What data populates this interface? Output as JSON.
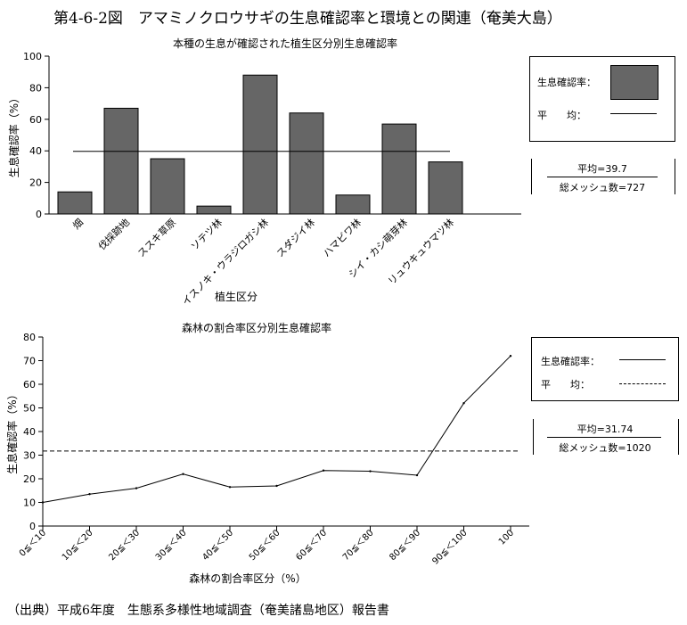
{
  "title": "第4-6-2図　アマミノクロウサギの生息確認率と環境との関連（奄美大島）",
  "source": "（出典）平成6年度　生態系多様性地域調査（奄美諸島地区）報告書",
  "chart_data": [
    {
      "type": "bar",
      "title": "本種の生息が確認された植生区分別生息確認率",
      "xlabel": "植生区分",
      "ylabel": "生息確認率（%）",
      "ylim": [
        0,
        100
      ],
      "yticks": [
        0,
        20,
        40,
        60,
        80,
        100
      ],
      "categories": [
        "畑",
        "伐採跡地",
        "ススキ草原",
        "ソテツ林",
        "イスノキ・ウラジロガシ林",
        "スダジイ林",
        "ハマビワ林",
        "シイ・カシ萌芽林",
        "リュウキュウマツ林"
      ],
      "values": [
        14,
        67,
        35,
        5,
        88,
        64,
        12,
        57,
        33
      ],
      "average": 39.7,
      "bar_color": "#666666",
      "legend": {
        "placement": "right",
        "observed_label": "生息確認率：",
        "average_label": "平　　均："
      },
      "stats": {
        "average_text": "平均=39.7",
        "mesh_text": "総メッシュ数=727"
      }
    },
    {
      "type": "line",
      "title": "森林の割合率区分別生息確認率",
      "xlabel": "森林の割合率区分（%）",
      "ylabel": "生息確認率（%）",
      "ylim": [
        0,
        80
      ],
      "yticks": [
        0,
        10,
        20,
        30,
        40,
        50,
        60,
        70,
        80
      ],
      "categories": [
        "0≦＜10",
        "10≦＜20",
        "20≦＜30",
        "30≦＜40",
        "40≦＜50",
        "50≦＜60",
        "60≦＜70",
        "70≦＜80",
        "80≦＜90",
        "90≦＜100",
        "100"
      ],
      "values": [
        10,
        13.5,
        16,
        22,
        16.5,
        17,
        23.5,
        23.2,
        21.5,
        52,
        72
      ],
      "average": 31.74,
      "legend": {
        "placement": "right",
        "observed_label": "生息確認率：",
        "average_label": "平　　均："
      },
      "stats": {
        "average_text": "平均=31.74",
        "mesh_text": "総メッシュ数=1020"
      }
    }
  ]
}
